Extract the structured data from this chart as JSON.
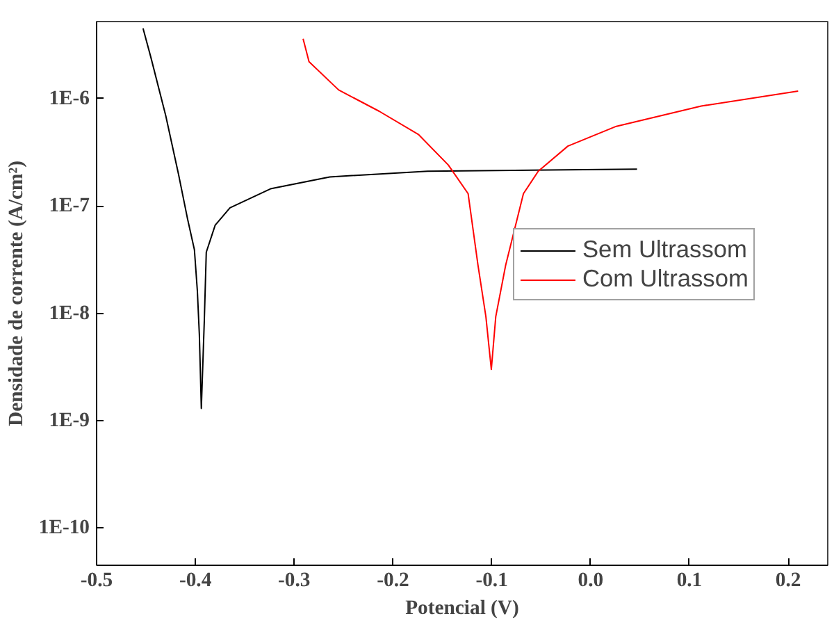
{
  "chart_data": {
    "type": "line",
    "xlabel": "Potencial (V)",
    "ylabel": "Densidade de corrente (A/cm²)",
    "log": "y",
    "xlim": [
      -0.5,
      0.24
    ],
    "xticks": [
      {
        "value": -0.5,
        "label": "-0.5"
      },
      {
        "value": -0.4,
        "label": "-0.4"
      },
      {
        "value": -0.3,
        "label": "-0.3"
      },
      {
        "value": -0.2,
        "label": "-0.2"
      },
      {
        "value": -0.1,
        "label": "-0.1"
      },
      {
        "value": 0.0,
        "label": "0.0"
      },
      {
        "value": 0.1,
        "label": "0.1"
      },
      {
        "value": 0.2,
        "label": "0.2"
      }
    ],
    "ylim": [
      4.5e-11,
      5.2e-06
    ],
    "yticks": [
      {
        "value": 1e-10,
        "label": "1E-10"
      },
      {
        "value": 1e-09,
        "label": "1E-9"
      },
      {
        "value": 1e-08,
        "label": "1E-8"
      },
      {
        "value": 1e-07,
        "label": "1E-7"
      },
      {
        "value": 1e-06,
        "label": "1E-6"
      }
    ],
    "grid": false,
    "legend": "right",
    "line_style": "solid",
    "marker": "none",
    "series": [
      {
        "name": "Sem Ultrassom",
        "color": "#000000",
        "x": [
          -0.453,
          -0.445,
          -0.43,
          -0.417,
          -0.408,
          -0.401,
          -0.398,
          -0.396,
          -0.394,
          -0.391,
          -0.389,
          -0.38,
          -0.365,
          -0.324,
          -0.264,
          -0.165,
          0.047
        ],
        "values": [
          4.5e-06,
          2.4e-06,
          6.9e-07,
          1.95e-07,
          7.6e-08,
          3.9e-08,
          1.6e-08,
          6.3e-09,
          1.3e-09,
          8.5e-09,
          3.7e-08,
          6.6e-08,
          9.6e-08,
          1.44e-07,
          1.86e-07,
          2.1e-07,
          2.2e-07
        ]
      },
      {
        "name": "Com Ultrassom",
        "color": "#ff0000",
        "x": [
          -0.291,
          -0.285,
          -0.255,
          -0.214,
          -0.174,
          -0.144,
          -0.124,
          -0.114,
          -0.106,
          -0.1005,
          -0.096,
          -0.086,
          -0.068,
          -0.053,
          -0.023,
          0.026,
          0.112,
          0.21
        ],
        "values": [
          3.6e-06,
          2.2e-06,
          1.2e-06,
          7.6e-07,
          4.6e-07,
          2.4e-07,
          1.3e-07,
          2.8e-08,
          9.3e-09,
          3e-09,
          9.3e-09,
          2.8e-08,
          1.3e-07,
          2.1e-07,
          3.6e-07,
          5.5e-07,
          8.5e-07,
          1.17e-06
        ]
      }
    ]
  }
}
